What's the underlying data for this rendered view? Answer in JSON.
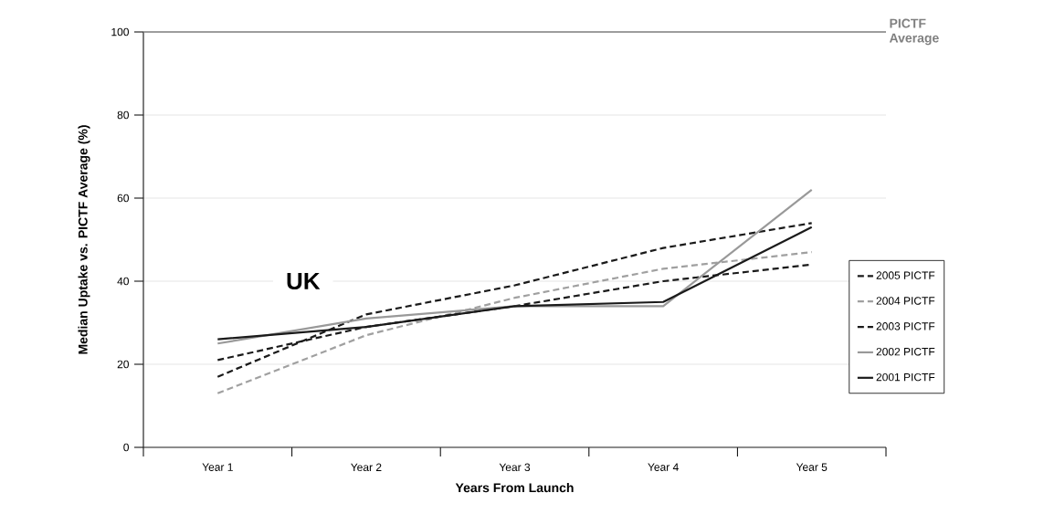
{
  "chart_data": {
    "type": "line",
    "xlabel": "Years From Launch",
    "ylabel": "Median Uptake vs. PICTF Average (%)",
    "categories": [
      "Year 1",
      "Year 2",
      "Year 3",
      "Year 4",
      "Year 5"
    ],
    "series": [
      {
        "name": "2005 PICTF",
        "color": "#1a1a1a",
        "line_style": "dashed",
        "values": [
          17,
          32,
          39,
          48,
          54
        ]
      },
      {
        "name": "2004 PICTF",
        "color": "#a0a0a0",
        "line_style": "dashed",
        "values": [
          13,
          27,
          36,
          43,
          47
        ]
      },
      {
        "name": "2003 PICTF",
        "color": "#1a1a1a",
        "line_style": "dashed",
        "values": [
          21,
          29,
          34,
          40,
          44
        ]
      },
      {
        "name": "2002 PICTF",
        "color": "#999999",
        "line_style": "solid",
        "values": [
          25,
          31,
          34,
          34,
          62
        ]
      },
      {
        "name": "2001 PICTF",
        "color": "#1a1a1a",
        "line_style": "solid",
        "values": [
          26,
          29,
          34,
          35,
          53
        ]
      }
    ],
    "ylim": [
      0,
      100
    ],
    "yticks": [
      0,
      20,
      40,
      60,
      80,
      100
    ],
    "grid": "y",
    "legend": "right",
    "marker": "none",
    "ref_lines": [
      {
        "axis": "y",
        "value": 100,
        "label": "PICTF Average",
        "color": "#808080"
      }
    ],
    "annotations": [
      "UK"
    ]
  }
}
